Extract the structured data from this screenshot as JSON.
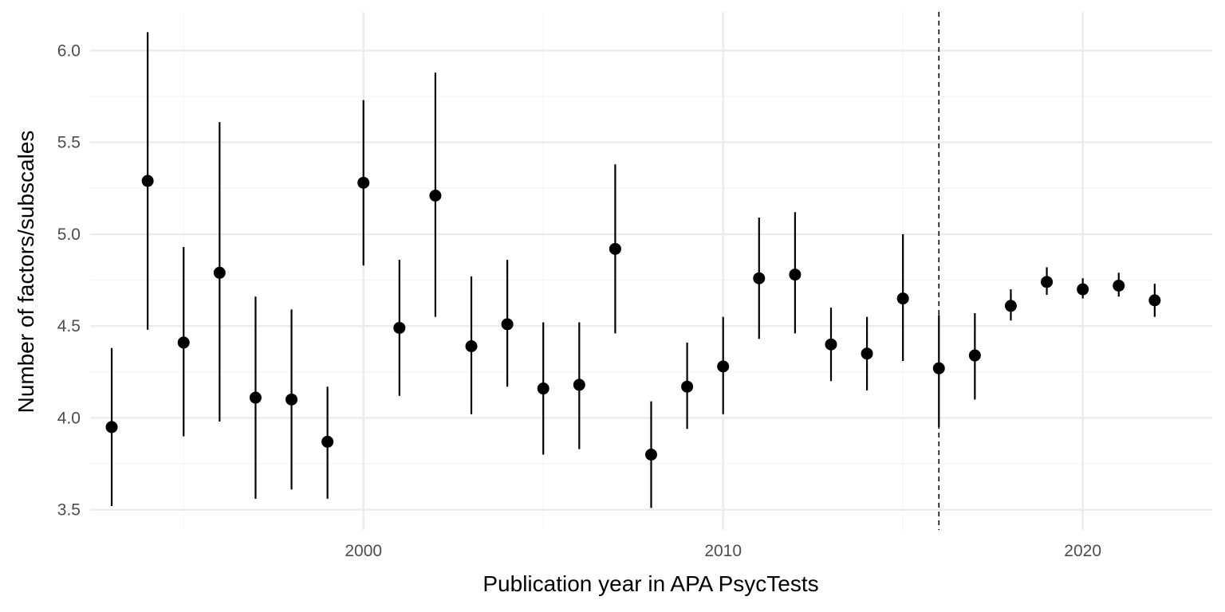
{
  "chart_data": {
    "type": "scatter",
    "title": "",
    "xlabel": "Publication year in APA PsycTests",
    "ylabel": "Number of factors/subscales",
    "xlim": [
      1992.4,
      2023.6
    ],
    "ylim": [
      3.39,
      6.21
    ],
    "x_ticks": [
      2000,
      2010,
      2020
    ],
    "x_tick_labels": [
      "2000",
      "2010",
      "2020"
    ],
    "x_minor_ticks": [
      1995,
      2005,
      2015
    ],
    "y_ticks": [
      3.5,
      4.0,
      4.5,
      5.0,
      5.5,
      6.0
    ],
    "y_tick_labels": [
      "3.5",
      "4.0",
      "4.5",
      "5.0",
      "5.5",
      "6.0"
    ],
    "y_minor_ticks": [
      3.75,
      4.25,
      4.75,
      5.25,
      5.75
    ],
    "grid": true,
    "reference_line": {
      "x": 2016,
      "style": "dashed"
    },
    "points": [
      {
        "x": 1993,
        "y": 3.95,
        "lower": 3.52,
        "upper": 4.38
      },
      {
        "x": 1994,
        "y": 5.29,
        "lower": 4.48,
        "upper": 6.1
      },
      {
        "x": 1995,
        "y": 4.41,
        "lower": 3.9,
        "upper": 4.93
      },
      {
        "x": 1996,
        "y": 4.79,
        "lower": 3.98,
        "upper": 5.61
      },
      {
        "x": 1997,
        "y": 4.11,
        "lower": 3.56,
        "upper": 4.66
      },
      {
        "x": 1998,
        "y": 4.1,
        "lower": 3.61,
        "upper": 4.59
      },
      {
        "x": 1999,
        "y": 3.87,
        "lower": 3.56,
        "upper": 4.17
      },
      {
        "x": 2000,
        "y": 5.28,
        "lower": 4.83,
        "upper": 5.73
      },
      {
        "x": 2001,
        "y": 4.49,
        "lower": 4.12,
        "upper": 4.86
      },
      {
        "x": 2002,
        "y": 5.21,
        "lower": 4.55,
        "upper": 5.88
      },
      {
        "x": 2003,
        "y": 4.39,
        "lower": 4.02,
        "upper": 4.77
      },
      {
        "x": 2004,
        "y": 4.51,
        "lower": 4.17,
        "upper": 4.86
      },
      {
        "x": 2005,
        "y": 4.16,
        "lower": 3.8,
        "upper": 4.52
      },
      {
        "x": 2006,
        "y": 4.18,
        "lower": 3.83,
        "upper": 4.52
      },
      {
        "x": 2007,
        "y": 4.92,
        "lower": 4.46,
        "upper": 5.38
      },
      {
        "x": 2008,
        "y": 3.8,
        "lower": 3.51,
        "upper": 4.09
      },
      {
        "x": 2009,
        "y": 4.17,
        "lower": 3.94,
        "upper": 4.41
      },
      {
        "x": 2010,
        "y": 4.28,
        "lower": 4.02,
        "upper": 4.55
      },
      {
        "x": 2011,
        "y": 4.76,
        "lower": 4.43,
        "upper": 5.09
      },
      {
        "x": 2012,
        "y": 4.78,
        "lower": 4.46,
        "upper": 5.12
      },
      {
        "x": 2013,
        "y": 4.4,
        "lower": 4.2,
        "upper": 4.6
      },
      {
        "x": 2014,
        "y": 4.35,
        "lower": 4.15,
        "upper": 4.55
      },
      {
        "x": 2015,
        "y": 4.65,
        "lower": 4.31,
        "upper": 5.0
      },
      {
        "x": 2016,
        "y": 4.27,
        "lower": 3.95,
        "upper": 4.56
      },
      {
        "x": 2017,
        "y": 4.34,
        "lower": 4.1,
        "upper": 4.57
      },
      {
        "x": 2018,
        "y": 4.61,
        "lower": 4.53,
        "upper": 4.7
      },
      {
        "x": 2019,
        "y": 4.74,
        "lower": 4.67,
        "upper": 4.82
      },
      {
        "x": 2020,
        "y": 4.7,
        "lower": 4.65,
        "upper": 4.76
      },
      {
        "x": 2021,
        "y": 4.72,
        "lower": 4.66,
        "upper": 4.79
      },
      {
        "x": 2022,
        "y": 4.64,
        "lower": 4.55,
        "upper": 4.73
      }
    ],
    "colors": {
      "point": "#000000",
      "grid_major": "#ebebeb",
      "grid_minor": "#f5f5f5",
      "tick_text": "#4d4d4d"
    }
  }
}
